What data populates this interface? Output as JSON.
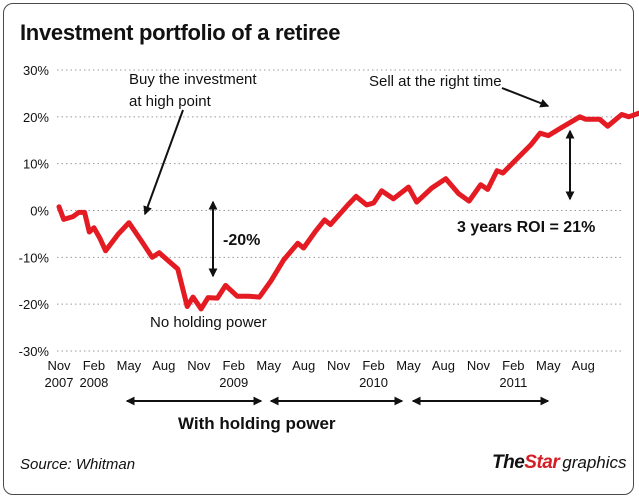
{
  "header": {
    "title": "Investment portfolio of a retiree"
  },
  "footer": {
    "source": "Source: Whitman",
    "brand_the": "The",
    "brand_star": "Star",
    "brand_suffix": "graphics"
  },
  "colors": {
    "line": "#e41b23",
    "text": "#111111",
    "grid": "#9a9a9a"
  },
  "chart_data": {
    "type": "line",
    "title": "Investment portfolio of a retiree",
    "xlabel": "",
    "ylabel": "",
    "ylim": [
      -30,
      30
    ],
    "yticks": [
      -30,
      -20,
      -10,
      0,
      10,
      20,
      30
    ],
    "ytick_labels": [
      "-30%",
      "-20%",
      "-10%",
      "0%",
      "10%",
      "20%",
      "30%"
    ],
    "grid": true,
    "xticks": [
      {
        "line1": "Nov",
        "line2": "2007"
      },
      {
        "line1": "Feb",
        "line2": "2008"
      },
      {
        "line1": "May",
        "line2": ""
      },
      {
        "line1": "Aug",
        "line2": ""
      },
      {
        "line1": "Nov",
        "line2": ""
      },
      {
        "line1": "Feb",
        "line2": "2009"
      },
      {
        "line1": "May",
        "line2": ""
      },
      {
        "line1": "Aug",
        "line2": ""
      },
      {
        "line1": "Nov",
        "line2": ""
      },
      {
        "line1": "Feb",
        "line2": "2010"
      },
      {
        "line1": "May",
        "line2": ""
      },
      {
        "line1": "Aug",
        "line2": ""
      },
      {
        "line1": "Nov",
        "line2": ""
      },
      {
        "line1": "Feb",
        "line2": "2011"
      },
      {
        "line1": "May",
        "line2": ""
      },
      {
        "line1": "Aug",
        "line2": ""
      }
    ],
    "series": [
      {
        "values": [
          [
            0.0,
            0.8
          ],
          [
            0.4,
            -1.9
          ],
          [
            1.2,
            -1.3
          ],
          [
            1.7,
            -0.4
          ],
          [
            2.2,
            -0.4
          ],
          [
            2.6,
            -4.6
          ],
          [
            3.0,
            -3.7
          ],
          [
            3.5,
            -5.9
          ],
          [
            4.0,
            -8.6
          ],
          [
            5.1,
            -5.0
          ],
          [
            6.0,
            -2.6
          ],
          [
            7.1,
            -6.6
          ],
          [
            8.0,
            -10.0
          ],
          [
            8.6,
            -9.0
          ],
          [
            9.5,
            -11.0
          ],
          [
            10.2,
            -12.5
          ],
          [
            11.0,
            -20.5
          ],
          [
            11.5,
            -18.5
          ],
          [
            12.2,
            -21.0
          ],
          [
            12.8,
            -18.6
          ],
          [
            13.6,
            -18.7
          ],
          [
            14.3,
            -16.0
          ],
          [
            15.3,
            -18.3
          ],
          [
            16.3,
            -18.3
          ],
          [
            17.2,
            -18.5
          ],
          [
            18.2,
            -15.0
          ],
          [
            19.3,
            -10.5
          ],
          [
            20.5,
            -7.0
          ],
          [
            21.0,
            -8.0
          ],
          [
            22.0,
            -4.5
          ],
          [
            22.8,
            -2.0
          ],
          [
            23.3,
            -3.0
          ],
          [
            24.8,
            1.2
          ],
          [
            25.5,
            3.0
          ],
          [
            26.4,
            1.2
          ],
          [
            27.0,
            1.6
          ],
          [
            27.7,
            4.2
          ],
          [
            28.7,
            2.5
          ],
          [
            30.0,
            5.0
          ],
          [
            30.7,
            1.8
          ],
          [
            32.0,
            4.8
          ],
          [
            33.2,
            6.8
          ],
          [
            34.3,
            3.6
          ],
          [
            35.2,
            2.0
          ],
          [
            36.2,
            5.5
          ],
          [
            36.8,
            4.5
          ],
          [
            37.6,
            8.5
          ],
          [
            38.1,
            8.0
          ],
          [
            39.1,
            10.5
          ],
          [
            40.5,
            14.0
          ],
          [
            41.3,
            16.5
          ],
          [
            42.0,
            16.0
          ],
          [
            43.0,
            17.5
          ],
          [
            44.7,
            20.0
          ],
          [
            45.2,
            19.5
          ],
          [
            46.4,
            19.5
          ],
          [
            47.1,
            18.0
          ],
          [
            48.3,
            20.5
          ],
          [
            48.9,
            20.0
          ],
          [
            49.8,
            20.8
          ],
          [
            51.5,
            21.5
          ],
          [
            52.3,
            21.0
          ],
          [
            53.3,
            23.0
          ],
          [
            54.1,
            22.5
          ],
          [
            54.9,
            21.5
          ],
          [
            55.2,
            18.5
          ],
          [
            55.5,
            17.8
          ],
          [
            55.9,
            18.6
          ]
        ]
      }
    ],
    "annotations": {
      "buy_line1": "Buy the investment",
      "buy_line2": "at high point",
      "sell": "Sell at the right time",
      "no_holding": "No holding power",
      "drop": "-20%",
      "roi": "3 years ROI = 21%",
      "with_holding": "With holding power"
    }
  }
}
